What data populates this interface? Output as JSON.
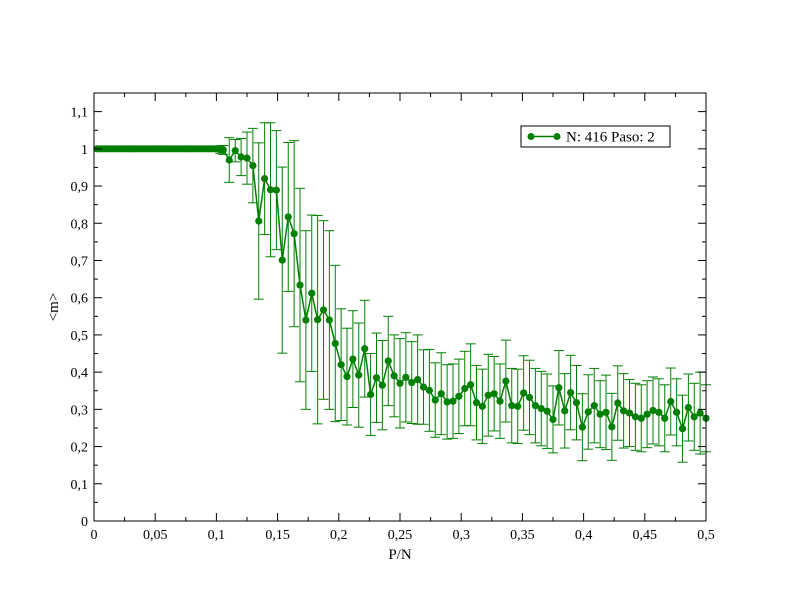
{
  "chart_data": {
    "type": "line",
    "title": "",
    "xlabel": "P/N",
    "ylabel": "<m>",
    "xlim": [
      0,
      0.5
    ],
    "ylim": [
      0,
      1.15
    ],
    "x_ticks": [
      "0",
      "0,05",
      "0,1",
      "0,15",
      "0,2",
      "0,25",
      "0,3",
      "0,35",
      "0,4",
      "0,45",
      "0,5"
    ],
    "x_tick_values": [
      0,
      0.05,
      0.1,
      0.15,
      0.2,
      0.25,
      0.3,
      0.35,
      0.4,
      0.45,
      0.5
    ],
    "y_ticks": [
      "0",
      "0,1",
      "0,2",
      "0,3",
      "0,4",
      "0,5",
      "0,6",
      "0,7",
      "0,8",
      "0,9",
      "1",
      "1,1"
    ],
    "y_tick_values": [
      0,
      0.1,
      0.2,
      0.3,
      0.4,
      0.5,
      0.6,
      0.7,
      0.8,
      0.9,
      1.0,
      1.1
    ],
    "grid": false,
    "legend_position": "top-right",
    "series": [
      {
        "name": "N: 416 Paso: 2",
        "color": "#008000",
        "marker": "circle",
        "error_bars": true,
        "points": [
          [
            0.0024,
            1.0,
            0
          ],
          [
            0.0048,
            1.0,
            0
          ],
          [
            0.0072,
            1.0,
            0
          ],
          [
            0.0096,
            1.0,
            0
          ],
          [
            0.012,
            1.0,
            0
          ],
          [
            0.0144,
            1.0,
            0
          ],
          [
            0.0168,
            1.0,
            0
          ],
          [
            0.0192,
            1.0,
            0
          ],
          [
            0.0216,
            1.0,
            0
          ],
          [
            0.024,
            1.0,
            0
          ],
          [
            0.0264,
            1.0,
            0
          ],
          [
            0.0288,
            1.0,
            0
          ],
          [
            0.0312,
            1.0,
            0
          ],
          [
            0.0336,
            1.0,
            0
          ],
          [
            0.036,
            1.0,
            0
          ],
          [
            0.0384,
            1.0,
            0
          ],
          [
            0.0408,
            1.0,
            0
          ],
          [
            0.0432,
            1.0,
            0
          ],
          [
            0.0456,
            1.0,
            0
          ],
          [
            0.048,
            1.0,
            0
          ],
          [
            0.0504,
            1.0,
            0
          ],
          [
            0.0528,
            1.0,
            0
          ],
          [
            0.0552,
            1.0,
            0
          ],
          [
            0.0576,
            1.0,
            0
          ],
          [
            0.06,
            1.0,
            0
          ],
          [
            0.0624,
            1.0,
            0
          ],
          [
            0.0648,
            1.0,
            0
          ],
          [
            0.0672,
            1.0,
            0
          ],
          [
            0.0696,
            1.0,
            0
          ],
          [
            0.072,
            1.0,
            0
          ],
          [
            0.0744,
            1.0,
            0
          ],
          [
            0.0768,
            1.0,
            0
          ],
          [
            0.0792,
            1.0,
            0
          ],
          [
            0.0816,
            1.0,
            0
          ],
          [
            0.084,
            1.0,
            0
          ],
          [
            0.0864,
            1.0,
            0
          ],
          [
            0.0888,
            1.0,
            0
          ],
          [
            0.0912,
            1.0,
            0
          ],
          [
            0.0936,
            1.0,
            0
          ],
          [
            0.096,
            1.0,
            0
          ],
          [
            0.0984,
            1.0,
            0
          ],
          [
            0.1008,
            1.0,
            0.005
          ],
          [
            0.1032,
            0.998,
            0.01
          ],
          [
            0.1056,
            0.997,
            0.012
          ],
          [
            0.1105,
            0.97,
            0.06
          ],
          [
            0.1154,
            0.995,
            0.03
          ],
          [
            0.1202,
            0.978,
            0.05
          ],
          [
            0.125,
            0.975,
            0.07
          ],
          [
            0.1298,
            0.955,
            0.1
          ],
          [
            0.1346,
            0.806,
            0.21
          ],
          [
            0.1394,
            0.92,
            0.15
          ],
          [
            0.1442,
            0.89,
            0.18
          ],
          [
            0.149,
            0.889,
            0.16
          ],
          [
            0.1538,
            0.701,
            0.25
          ],
          [
            0.1587,
            0.817,
            0.2
          ],
          [
            0.1635,
            0.772,
            0.25
          ],
          [
            0.1683,
            0.634,
            0.26
          ],
          [
            0.1731,
            0.54,
            0.24
          ],
          [
            0.1779,
            0.612,
            0.21
          ],
          [
            0.1827,
            0.541,
            0.28
          ],
          [
            0.1875,
            0.567,
            0.24
          ],
          [
            0.1923,
            0.54,
            0.24
          ],
          [
            0.1971,
            0.477,
            0.21
          ],
          [
            0.2019,
            0.42,
            0.15
          ],
          [
            0.2067,
            0.388,
            0.13
          ],
          [
            0.2115,
            0.435,
            0.13
          ],
          [
            0.2163,
            0.392,
            0.14
          ],
          [
            0.2212,
            0.463,
            0.13
          ],
          [
            0.226,
            0.34,
            0.11
          ],
          [
            0.2308,
            0.385,
            0.12
          ],
          [
            0.2356,
            0.365,
            0.12
          ],
          [
            0.2404,
            0.43,
            0.12
          ],
          [
            0.2452,
            0.39,
            0.11
          ],
          [
            0.25,
            0.37,
            0.12
          ],
          [
            0.2548,
            0.386,
            0.12
          ],
          [
            0.2596,
            0.372,
            0.11
          ],
          [
            0.2644,
            0.38,
            0.12
          ],
          [
            0.2692,
            0.36,
            0.1
          ],
          [
            0.274,
            0.351,
            0.11
          ],
          [
            0.2788,
            0.325,
            0.1
          ],
          [
            0.2837,
            0.342,
            0.11
          ],
          [
            0.2885,
            0.32,
            0.1
          ],
          [
            0.2933,
            0.322,
            0.1
          ],
          [
            0.2981,
            0.335,
            0.1
          ],
          [
            0.3029,
            0.356,
            0.1
          ],
          [
            0.3077,
            0.366,
            0.11
          ],
          [
            0.3125,
            0.318,
            0.1
          ],
          [
            0.3173,
            0.308,
            0.1
          ],
          [
            0.3221,
            0.338,
            0.11
          ],
          [
            0.3269,
            0.342,
            0.1
          ],
          [
            0.3317,
            0.322,
            0.1
          ],
          [
            0.3365,
            0.376,
            0.11
          ],
          [
            0.3413,
            0.31,
            0.1
          ],
          [
            0.3462,
            0.308,
            0.1
          ],
          [
            0.351,
            0.344,
            0.1
          ],
          [
            0.3558,
            0.332,
            0.1
          ],
          [
            0.3606,
            0.31,
            0.1
          ],
          [
            0.3654,
            0.302,
            0.1
          ],
          [
            0.3702,
            0.295,
            0.1
          ],
          [
            0.375,
            0.273,
            0.09
          ],
          [
            0.3798,
            0.358,
            0.1
          ],
          [
            0.3846,
            0.296,
            0.1
          ],
          [
            0.3894,
            0.345,
            0.1
          ],
          [
            0.3942,
            0.318,
            0.1
          ],
          [
            0.399,
            0.252,
            0.09
          ],
          [
            0.4038,
            0.293,
            0.1
          ],
          [
            0.4087,
            0.31,
            0.1
          ],
          [
            0.4135,
            0.287,
            0.09
          ],
          [
            0.4183,
            0.292,
            0.1
          ],
          [
            0.4231,
            0.253,
            0.09
          ],
          [
            0.4279,
            0.317,
            0.1
          ],
          [
            0.4327,
            0.296,
            0.1
          ],
          [
            0.4375,
            0.29,
            0.09
          ],
          [
            0.4423,
            0.28,
            0.09
          ],
          [
            0.4471,
            0.276,
            0.09
          ],
          [
            0.4519,
            0.287,
            0.09
          ],
          [
            0.4567,
            0.297,
            0.09
          ],
          [
            0.4615,
            0.292,
            0.09
          ],
          [
            0.4663,
            0.276,
            0.09
          ],
          [
            0.4712,
            0.321,
            0.09
          ],
          [
            0.476,
            0.292,
            0.09
          ],
          [
            0.4808,
            0.248,
            0.09
          ],
          [
            0.4856,
            0.305,
            0.09
          ],
          [
            0.4904,
            0.28,
            0.09
          ],
          [
            0.4952,
            0.29,
            0.11
          ],
          [
            0.5,
            0.276,
            0.09
          ]
        ]
      }
    ]
  }
}
